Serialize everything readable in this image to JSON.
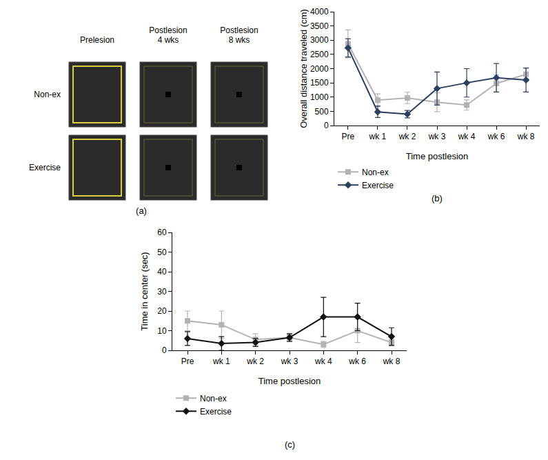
{
  "panel_a": {
    "label": "(a)",
    "columns": [
      [
        "Prelesion"
      ],
      [
        "Postlesion",
        "4 wks"
      ],
      [
        "Postlesion",
        "8 wks"
      ]
    ],
    "rows": [
      "Non-ex",
      "Exercise"
    ]
  },
  "chart_data": [
    {
      "type": "line",
      "label": "(b)",
      "x_label": "Time postlesion",
      "y_label": "Overall distance traveled (cm)",
      "categories": [
        "Pre",
        "wk 1",
        "wk 2",
        "wk 3",
        "wk 4",
        "wk 6",
        "wk 8"
      ],
      "ylim": [
        0,
        4000
      ],
      "yticks": [
        0,
        500,
        1000,
        1500,
        2000,
        2500,
        3000,
        3500,
        4000
      ],
      "grid": false,
      "legend": "bottom",
      "series": [
        {
          "name": "Non-ex",
          "color": "#b3b3b3",
          "marker": "square",
          "values": [
            2870,
            890,
            970,
            820,
            720,
            1480,
            1800
          ],
          "error": [
            490,
            220,
            200,
            330,
            180,
            300,
            220
          ]
        },
        {
          "name": "Exercise",
          "color": "#2b3f5e",
          "marker": "diamond",
          "values": [
            2730,
            480,
            400,
            1300,
            1500,
            1680,
            1600
          ],
          "error": [
            320,
            200,
            130,
            580,
            500,
            500,
            420
          ]
        }
      ]
    },
    {
      "type": "line",
      "label": "(c)",
      "x_label": "Time postlesion",
      "y_label": "Time in center (sec)",
      "categories": [
        "Pre",
        "wk 1",
        "wk 2",
        "wk 3",
        "wk 4",
        "wk 6",
        "wk 8"
      ],
      "ylim": [
        0,
        60
      ],
      "yticks": [
        0,
        10,
        20,
        30,
        40,
        50,
        60
      ],
      "grid": false,
      "legend": "bottom",
      "series": [
        {
          "name": "Non-ex",
          "color": "#b3b3b3",
          "marker": "square",
          "values": [
            15,
            13,
            5.5,
            6.5,
            3,
            10,
            4
          ],
          "error": [
            5,
            7,
            3,
            1.5,
            1.5,
            6,
            1.5
          ]
        },
        {
          "name": "Exercise",
          "color": "#111111",
          "marker": "diamond",
          "values": [
            6,
            3.5,
            4,
            6.5,
            17,
            17,
            7
          ],
          "error": [
            3.5,
            3.5,
            2,
            2,
            10,
            7,
            4.5
          ]
        }
      ]
    }
  ]
}
